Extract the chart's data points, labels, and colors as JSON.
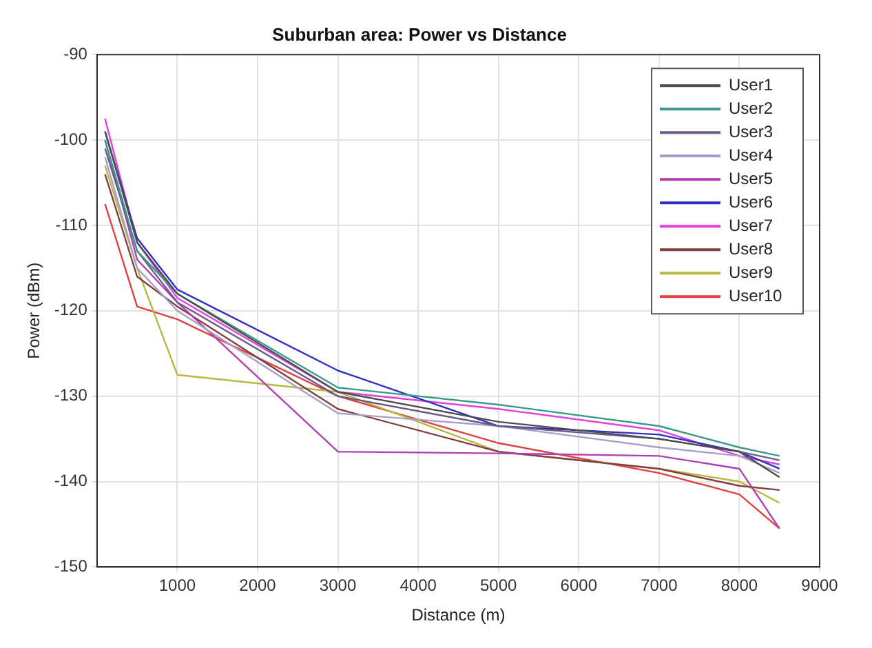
{
  "chart_data": {
    "type": "line",
    "title": "Suburban area: Power vs Distance",
    "xlabel": "Distance (m)",
    "ylabel": "Power (dBm)",
    "x": [
      100,
      500,
      1000,
      3000,
      5000,
      7000,
      8000,
      8500
    ],
    "series": [
      {
        "name": "User1",
        "color": "#4d4d4d",
        "values": [
          -99,
          -112,
          -118,
          -129.5,
          -133,
          -135,
          -136.5,
          -139.5
        ]
      },
      {
        "name": "User2",
        "color": "#3a9a8a",
        "values": [
          -100,
          -113,
          -118,
          -129,
          -131,
          -133.5,
          -136,
          -137
        ]
      },
      {
        "name": "User3",
        "color": "#6a5a8a",
        "values": [
          -101,
          -113,
          -119,
          -130,
          -133.5,
          -135,
          -136.5,
          -137.5
        ]
      },
      {
        "name": "User4",
        "color": "#a8a0c8",
        "values": [
          -102,
          -115,
          -120,
          -132,
          -133.5,
          -136,
          -137,
          -139
        ]
      },
      {
        "name": "User5",
        "color": "#b040b0",
        "values": [
          -100,
          -114,
          -119,
          -136.5,
          -136.7,
          -137,
          -138.5,
          -145.5
        ]
      },
      {
        "name": "User6",
        "color": "#3030c0",
        "values": [
          -99,
          -111.5,
          -117.5,
          -127,
          -133.5,
          -134.5,
          -136.5,
          -138.5
        ]
      },
      {
        "name": "User7",
        "color": "#e040e0",
        "values": [
          -97.5,
          -112,
          -118.5,
          -129.5,
          -131.5,
          -134,
          -137,
          -138
        ]
      },
      {
        "name": "User8",
        "color": "#804040",
        "values": [
          -104,
          -116,
          -119.5,
          -131.5,
          -136.5,
          -138.5,
          -140.5,
          -141
        ]
      },
      {
        "name": "User9",
        "color": "#b8b840",
        "values": [
          -103,
          -115,
          -127.5,
          -129.5,
          -136.5,
          -138.5,
          -140,
          -142.5
        ]
      },
      {
        "name": "User10",
        "color": "#e04040",
        "values": [
          -107.5,
          -119.5,
          -121,
          -130,
          -135.5,
          -139,
          -141.5,
          -145.5
        ]
      }
    ],
    "xlim": [
      0,
      9000
    ],
    "xticks": [
      1000,
      2000,
      3000,
      4000,
      5000,
      6000,
      7000,
      8000,
      9000
    ],
    "ylim": [
      -150,
      -90
    ],
    "yticks": [
      -150,
      -140,
      -130,
      -120,
      -110,
      -100,
      -90
    ],
    "grid": true,
    "legend": "top right",
    "marker": "none",
    "line_style": "solid"
  }
}
